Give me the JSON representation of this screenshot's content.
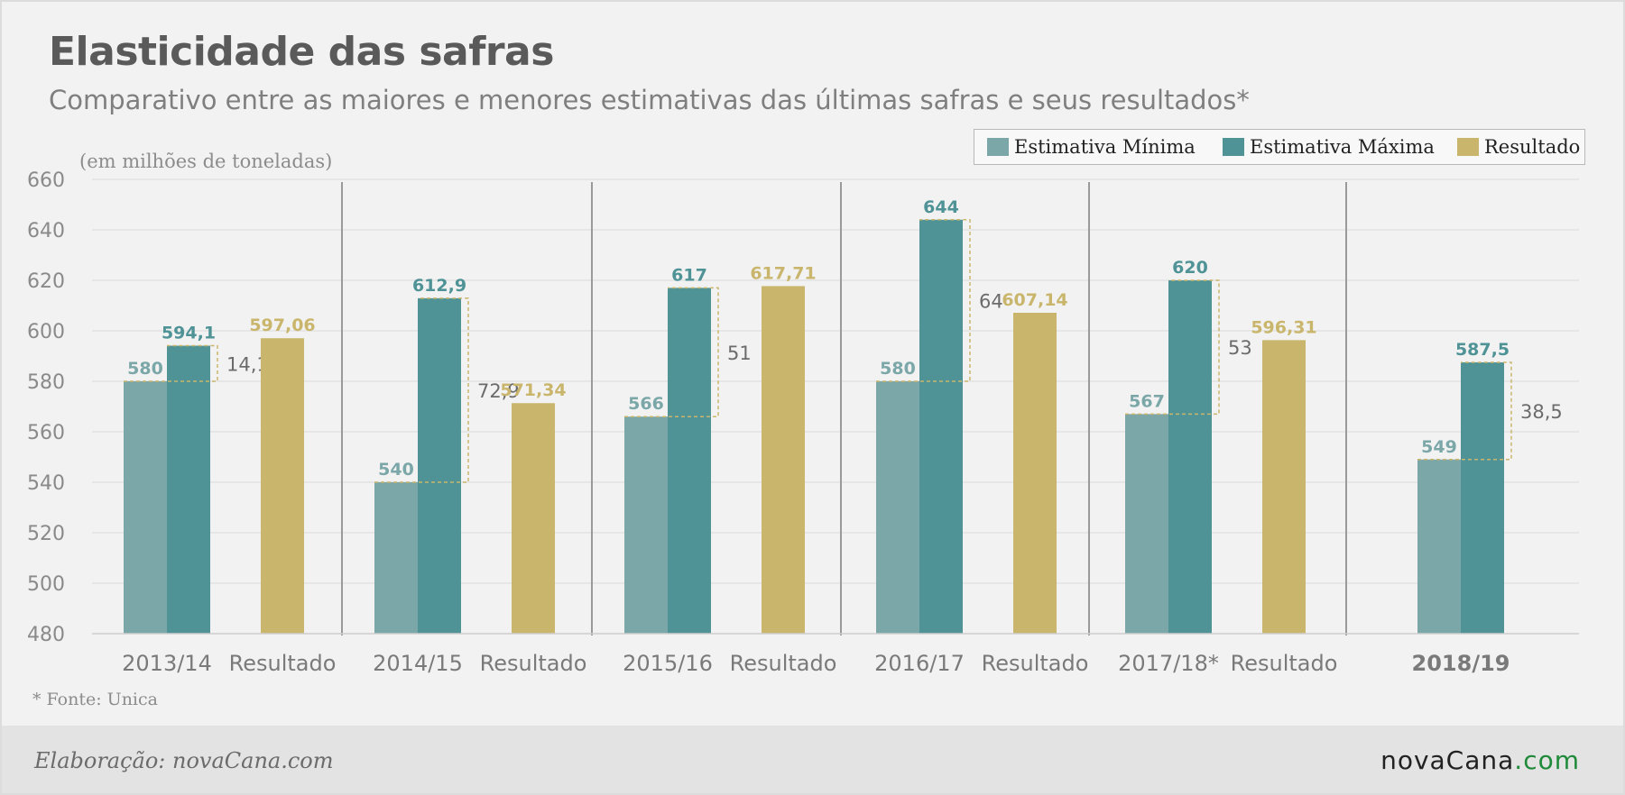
{
  "title": "Elasticidade das safras",
  "subtitle": "Comparativo entre as maiores e menores estimativas das últimas safras e seus resultados*",
  "unit_note": "(em milhões de toneladas)",
  "footnote": "* Fonte: Unica",
  "credit": "Elaboração: novaCana.com",
  "logo": {
    "main": "novaCana",
    "suffix": ".com"
  },
  "legend": [
    {
      "label": "Estimativa Mínima",
      "color": "#7ba7a8"
    },
    {
      "label": "Estimativa Máxima",
      "color": "#4f9397"
    },
    {
      "label": "Resultado",
      "color": "#c9b66c"
    }
  ],
  "chart_data": {
    "type": "bar",
    "ylim": [
      480,
      660
    ],
    "yticks": [
      480,
      500,
      520,
      540,
      560,
      580,
      600,
      620,
      640,
      660
    ],
    "grid": true,
    "legend_position": "top-right",
    "colors": {
      "min": "#7ba7a8",
      "max": "#4f9397",
      "result": "#c9b66c",
      "diff_text": "#6b6b6b"
    },
    "groups": [
      {
        "category": "2013/14",
        "min": 580,
        "min_label": "580",
        "max": 594.1,
        "max_label": "594,1",
        "diff_label": "14,1",
        "result": 597.06,
        "result_label": "597,06",
        "result_category": "Resultado"
      },
      {
        "category": "2014/15",
        "min": 540,
        "min_label": "540",
        "max": 612.9,
        "max_label": "612,9",
        "diff_label": "72,9",
        "result": 571.34,
        "result_label": "571,34",
        "result_category": "Resultado"
      },
      {
        "category": "2015/16",
        "min": 566,
        "min_label": "566",
        "max": 617,
        "max_label": "617",
        "diff_label": "51",
        "result": 617.71,
        "result_label": "617,71",
        "result_category": "Resultado"
      },
      {
        "category": "2016/17",
        "min": 580,
        "min_label": "580",
        "max": 644,
        "max_label": "644",
        "diff_label": "64",
        "result": 607.14,
        "result_label": "607,14",
        "result_category": "Resultado"
      },
      {
        "category": "2017/18*",
        "min": 567,
        "min_label": "567",
        "max": 620,
        "max_label": "620",
        "diff_label": "53",
        "result": 596.31,
        "result_label": "596,31",
        "result_category": "Resultado"
      },
      {
        "category": "2018/19",
        "min": 549,
        "min_label": "549",
        "max": 587.5,
        "max_label": "587,5",
        "diff_label": "38,5",
        "result": null,
        "result_label": "",
        "result_category": ""
      }
    ]
  }
}
